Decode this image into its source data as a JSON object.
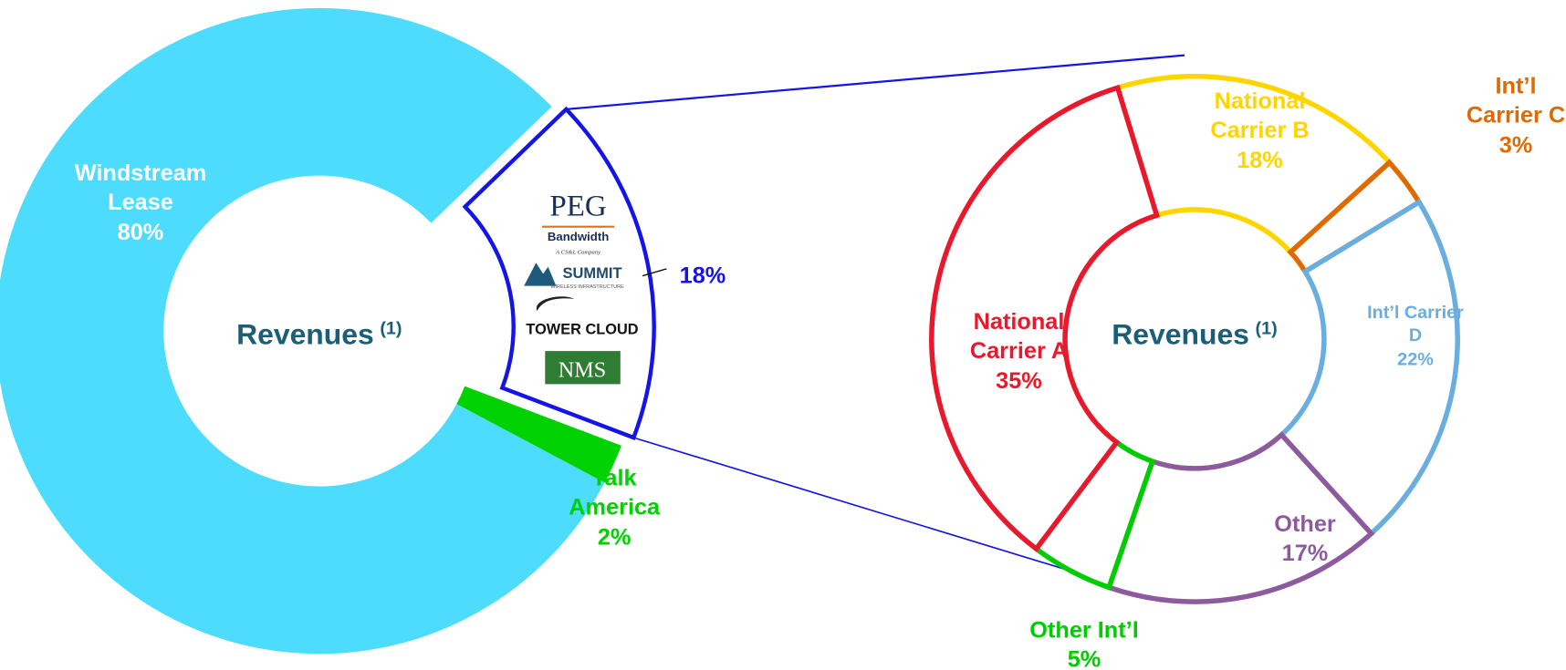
{
  "chart_data": [
    {
      "type": "donut",
      "center_label": "Revenues",
      "center_note": "(1)",
      "categories": [
        "Windstream Lease",
        null,
        "Talk America"
      ],
      "values": [
        80,
        18,
        2
      ],
      "value_labels": [
        "80%",
        "18%",
        "2%"
      ],
      "colors": [
        "#4DDCFC",
        "#1414E6",
        "#00D100"
      ],
      "label_colors": [
        "#FFFFFF",
        "#1414E6",
        "#00D100"
      ],
      "exploded": 1,
      "logos": [
        "PEG",
        "Bandwidth",
        "A CS&L Company",
        "SUMMIT",
        "WIRELESS INFRASTRUCTURE",
        "TOWER CLOUD",
        "NMS"
      ]
    },
    {
      "type": "donut",
      "style": "outline",
      "center_label": "Revenues",
      "center_note": "(1)",
      "categories": [
        "National Carrier B",
        "Int’l Carrier C",
        "Int’l Carrier D",
        "Other",
        "Other Int’l",
        "National Carrier A"
      ],
      "values": [
        18,
        3,
        22,
        17,
        5,
        35
      ],
      "value_labels": [
        "18%",
        "3%",
        "22%",
        "17%",
        "5%",
        "35%"
      ],
      "colors": [
        "#FFD500",
        "#E06A00",
        "#6AAEDF",
        "#8E5A9E",
        "#00CC00",
        "#E8192C"
      ]
    }
  ]
}
